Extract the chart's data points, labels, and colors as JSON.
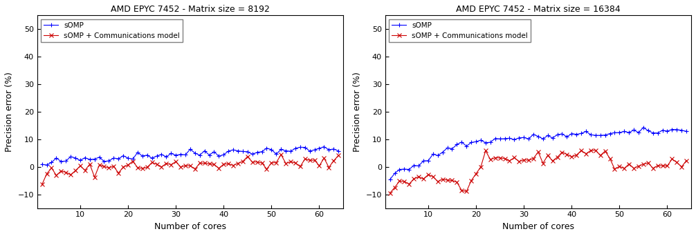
{
  "title1": "AMD EPYC 7452 - Matrix size = 8192",
  "title2": "AMD EPYC 7452 - Matrix size = 16384",
  "xlabel": "Number of cores",
  "ylabel": "Precision error (%)",
  "ylim": [
    -15,
    55
  ],
  "yticks": [
    -10,
    0,
    10,
    20,
    30,
    40,
    50
  ],
  "xlim": [
    1,
    65
  ],
  "xticks": [
    10,
    20,
    30,
    40,
    50,
    60
  ],
  "legend_labels": [
    "sOMP",
    "sOMP + Communications model"
  ],
  "blue_color": "#0000ff",
  "red_color": "#cc0000",
  "bg_color": "#ffffff"
}
